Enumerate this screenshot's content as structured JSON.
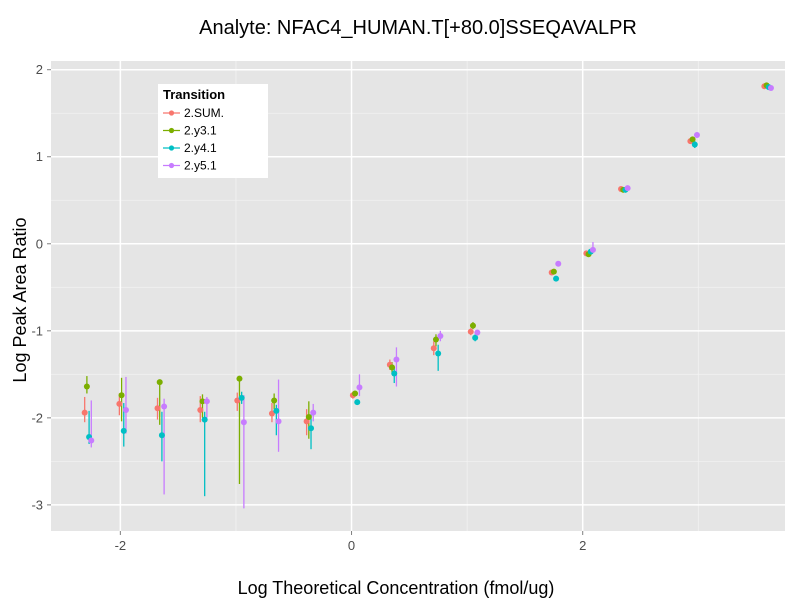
{
  "chart_data": {
    "type": "scatter",
    "title": "Analyte: NFAC4_HUMAN.T[+80.0]SSEQAVALPR",
    "xlabel": "Log Theoretical Concentration (fmol/ug)",
    "ylabel": "Log Peak Area Ratio",
    "xlim": [
      -2.6,
      3.75
    ],
    "ylim": [
      -3.3,
      2.1
    ],
    "x_ticks": [
      -2,
      0,
      2
    ],
    "y_ticks": [
      -3,
      -2,
      -1,
      0,
      1,
      2
    ],
    "x_tick_labels": [
      "-2",
      "0",
      "2"
    ],
    "y_tick_labels": [
      "-3",
      "-2",
      "-1",
      "0",
      "1",
      "2"
    ],
    "grid": true,
    "legend": {
      "title": "Transition",
      "position": "top-left"
    },
    "x": [
      -2.28,
      -1.98,
      -1.65,
      -1.28,
      -0.96,
      -0.66,
      -0.36,
      0.04,
      0.36,
      0.74,
      1.06,
      1.76,
      2.06,
      2.36,
      2.96,
      3.6
    ],
    "series": [
      {
        "name": "2.SUM.",
        "color": "#F8766D",
        "values": [
          -1.94,
          -1.84,
          -1.89,
          -1.91,
          -1.8,
          -1.95,
          -2.04,
          -1.74,
          -1.39,
          -1.2,
          -1.01,
          -0.33,
          -0.11,
          0.63,
          1.18,
          1.81
        ],
        "lower": [
          -2.05,
          -1.97,
          -2.02,
          -2.05,
          -1.92,
          -2.05,
          -2.2,
          -1.78,
          -1.45,
          -1.28,
          -1.05,
          -0.36,
          -0.12,
          0.61,
          1.16,
          1.79
        ],
        "upper": [
          -1.76,
          -1.72,
          -1.77,
          -1.75,
          -1.71,
          -1.83,
          -1.9,
          -1.7,
          -1.33,
          -1.12,
          -0.97,
          -0.3,
          -0.1,
          0.65,
          1.2,
          1.83
        ]
      },
      {
        "name": "2.y3.1",
        "color": "#7CAE00",
        "values": [
          -1.64,
          -1.74,
          -1.59,
          -1.81,
          -1.55,
          -1.8,
          -1.99,
          -1.72,
          -1.42,
          -1.1,
          -0.94,
          -0.32,
          -0.12,
          0.62,
          1.2,
          1.82
        ],
        "lower": [
          -1.72,
          -2.04,
          -2.08,
          -2.0,
          -2.76,
          -1.9,
          -2.24,
          -1.75,
          -1.48,
          -1.18,
          -0.98,
          -0.34,
          -0.13,
          0.6,
          1.18,
          1.8
        ],
        "upper": [
          -1.52,
          -1.54,
          -1.57,
          -1.73,
          -1.54,
          -1.72,
          -1.81,
          -1.7,
          -1.36,
          -1.04,
          -0.9,
          -0.3,
          -0.11,
          0.64,
          1.22,
          1.84
        ]
      },
      {
        "name": "2.y4.1",
        "color": "#00BFC4",
        "values": [
          -2.22,
          -2.15,
          -2.2,
          -2.02,
          -1.77,
          -1.92,
          -2.12,
          -1.82,
          -1.49,
          -1.26,
          -1.08,
          -0.4,
          -0.09,
          0.62,
          1.14,
          1.8
        ],
        "lower": [
          -2.3,
          -2.33,
          -2.5,
          -2.9,
          -1.84,
          -2.2,
          -2.36,
          -1.85,
          -1.6,
          -1.46,
          -1.12,
          -0.43,
          -0.11,
          0.6,
          1.1,
          1.78
        ],
        "upper": [
          -1.92,
          -1.83,
          -1.93,
          -1.93,
          -1.7,
          -1.85,
          -1.96,
          -1.79,
          -1.42,
          -1.16,
          -1.04,
          -0.38,
          -0.07,
          0.64,
          1.18,
          1.82
        ]
      },
      {
        "name": "2.y5.1",
        "color": "#C77CFF",
        "values": [
          -2.26,
          -1.91,
          -1.87,
          -1.81,
          -2.05,
          -2.04,
          -1.94,
          -1.65,
          -1.33,
          -1.06,
          -1.02,
          -0.23,
          -0.07,
          0.64,
          1.25,
          1.79
        ],
        "lower": [
          -2.34,
          -2.18,
          -2.88,
          -2.0,
          -3.04,
          -2.39,
          -2.04,
          -1.75,
          -1.64,
          -1.12,
          -1.05,
          -0.25,
          -0.09,
          0.62,
          1.23,
          1.77
        ],
        "upper": [
          -1.8,
          -1.53,
          -1.78,
          -1.76,
          -1.74,
          -1.56,
          -1.84,
          -1.5,
          -1.19,
          -1.0,
          -0.99,
          -0.21,
          0.02,
          0.66,
          1.27,
          1.81
        ]
      }
    ]
  }
}
